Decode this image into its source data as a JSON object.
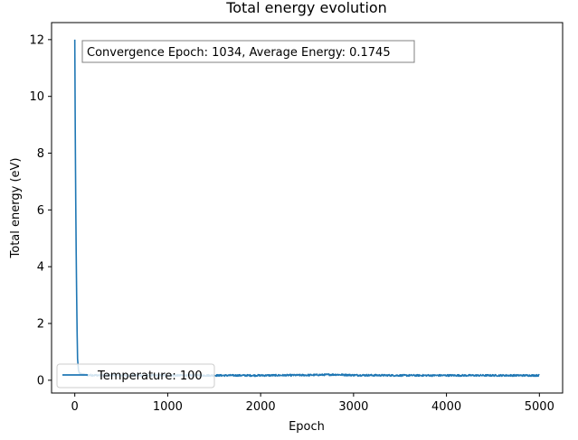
{
  "chart_data": {
    "type": "line",
    "title": "Total energy evolution",
    "xlabel": "Epoch",
    "ylabel": "Total energy (eV)",
    "xlim": [
      -250,
      5250
    ],
    "ylim": [
      -0.45,
      12.6
    ],
    "xticks": [
      0,
      1000,
      2000,
      3000,
      4000,
      5000
    ],
    "xtick_labels": [
      "0",
      "1000",
      "2000",
      "3000",
      "4000",
      "5000"
    ],
    "yticks": [
      0,
      2,
      4,
      6,
      8,
      10,
      12
    ],
    "ytick_labels": [
      "0",
      "2",
      "4",
      "6",
      "8",
      "10",
      "12"
    ],
    "grid": false,
    "annotation": "Convergence Epoch: 1034, Average Energy: 0.1745",
    "legend": {
      "placement": "lower-left",
      "entries": [
        "Temperature: 100"
      ]
    },
    "series": [
      {
        "name": "Temperature: 100",
        "color": "#1f77b4",
        "x": [
          0,
          5,
          10,
          15,
          20,
          25,
          30,
          40,
          50,
          60,
          80,
          100,
          150,
          200,
          300,
          500,
          750,
          1034,
          1500,
          2000,
          2500,
          2800,
          3000,
          3500,
          4000,
          4500,
          5000
        ],
        "values": [
          12.0,
          8.8,
          6.4,
          4.5,
          3.0,
          1.7,
          0.75,
          0.35,
          0.25,
          0.22,
          0.2,
          0.19,
          0.18,
          0.18,
          0.17,
          0.17,
          0.17,
          0.17,
          0.17,
          0.17,
          0.18,
          0.2,
          0.18,
          0.17,
          0.17,
          0.17,
          0.17
        ],
        "noise_amplitude": 0.06
      }
    ]
  }
}
